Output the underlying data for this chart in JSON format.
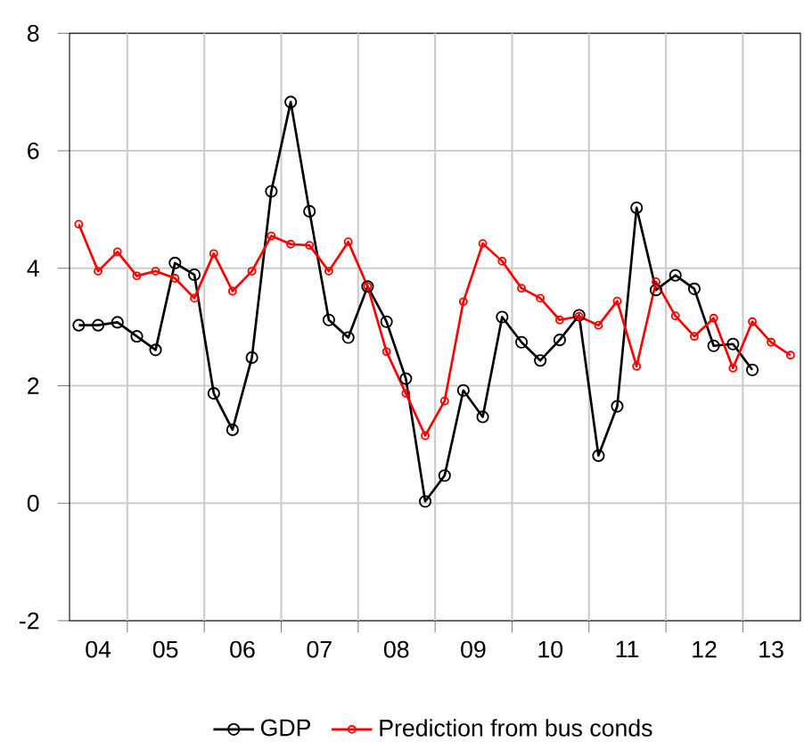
{
  "chart_data": {
    "type": "line",
    "xlim": [
      "2004-04-01",
      "2013-10-01"
    ],
    "ylim": [
      -2,
      8
    ],
    "yticks": [
      -2,
      0,
      2,
      4,
      6,
      8
    ],
    "xticks": [
      {
        "value": "2004-08-15",
        "label": "04"
      },
      {
        "value": "2005-07-01",
        "label": "05"
      },
      {
        "value": "2006-07-01",
        "label": "06"
      },
      {
        "value": "2007-07-01",
        "label": "07"
      },
      {
        "value": "2008-07-01",
        "label": "08"
      },
      {
        "value": "2009-07-01",
        "label": "09"
      },
      {
        "value": "2010-07-01",
        "label": "10"
      },
      {
        "value": "2011-07-01",
        "label": "11"
      },
      {
        "value": "2012-07-01",
        "label": "12"
      },
      {
        "value": "2013-05-15",
        "label": "13"
      },
      {
        "value": "2005-01-01",
        "label": null
      },
      {
        "value": "2006-01-01",
        "label": null
      },
      {
        "value": "2007-01-01",
        "label": null
      },
      {
        "value": "2008-01-01",
        "label": null
      },
      {
        "value": "2009-01-01",
        "label": null
      },
      {
        "value": "2010-01-01",
        "label": null
      },
      {
        "value": "2011-01-01",
        "label": null
      },
      {
        "value": "2012-01-01",
        "label": null
      },
      {
        "value": "2013-01-01",
        "label": null
      }
    ],
    "grid": true,
    "legend": "bottom",
    "marker": "circle",
    "line_style": "solid",
    "series": [
      {
        "name": "GDP",
        "color": "#000000",
        "x": [
          "2004-05-15",
          "2004-08-15",
          "2004-11-15",
          "2005-02-15",
          "2005-05-15",
          "2005-08-15",
          "2005-11-15",
          "2006-02-15",
          "2006-05-15",
          "2006-08-15",
          "2006-11-15",
          "2007-02-15",
          "2007-05-15",
          "2007-08-15",
          "2007-11-15",
          "2008-02-15",
          "2008-05-15",
          "2008-08-15",
          "2008-11-15",
          "2009-02-15",
          "2009-05-15",
          "2009-08-15",
          "2009-11-15",
          "2010-02-15",
          "2010-05-15",
          "2010-08-15",
          "2010-11-15",
          "2011-02-15",
          "2011-05-15",
          "2011-08-15",
          "2011-11-15",
          "2012-02-15",
          "2012-05-15",
          "2012-08-15",
          "2012-11-15",
          "2013-02-15"
        ],
        "values": [
          3.03,
          3.03,
          3.08,
          2.84,
          2.61,
          4.09,
          3.89,
          1.87,
          1.25,
          2.48,
          5.31,
          6.83,
          4.97,
          3.12,
          2.82,
          3.69,
          3.09,
          2.12,
          0.03,
          0.47,
          1.92,
          1.47,
          3.17,
          2.74,
          2.43,
          2.78,
          3.2,
          0.81,
          1.65,
          5.03,
          3.63,
          3.88,
          3.65,
          2.68,
          2.71,
          2.27
        ]
      },
      {
        "name": "Prediction from bus conds",
        "color": "#ff0000",
        "x": [
          "2004-05-15",
          "2004-08-15",
          "2004-11-15",
          "2005-02-15",
          "2005-05-15",
          "2005-08-15",
          "2005-11-15",
          "2006-02-15",
          "2006-05-15",
          "2006-08-15",
          "2006-11-15",
          "2007-02-15",
          "2007-05-15",
          "2007-08-15",
          "2007-11-15",
          "2008-02-15",
          "2008-05-15",
          "2008-08-15",
          "2008-11-15",
          "2009-02-15",
          "2009-05-15",
          "2009-08-15",
          "2009-11-15",
          "2010-02-15",
          "2010-05-15",
          "2010-08-15",
          "2010-11-15",
          "2011-02-15",
          "2011-05-15",
          "2011-08-15",
          "2011-11-15",
          "2012-02-15",
          "2012-05-15",
          "2012-08-15",
          "2012-11-15",
          "2013-02-15",
          "2013-05-15",
          "2013-08-15"
        ],
        "values": [
          4.75,
          3.95,
          4.28,
          3.87,
          3.95,
          3.83,
          3.49,
          4.25,
          3.61,
          3.95,
          4.55,
          4.41,
          4.39,
          3.95,
          4.45,
          3.69,
          2.58,
          1.87,
          1.15,
          1.74,
          3.43,
          4.42,
          4.12,
          3.66,
          3.49,
          3.12,
          3.18,
          3.03,
          3.44,
          2.33,
          3.77,
          3.19,
          2.84,
          3.15,
          2.3,
          3.09,
          2.74,
          2.52
        ]
      }
    ]
  }
}
